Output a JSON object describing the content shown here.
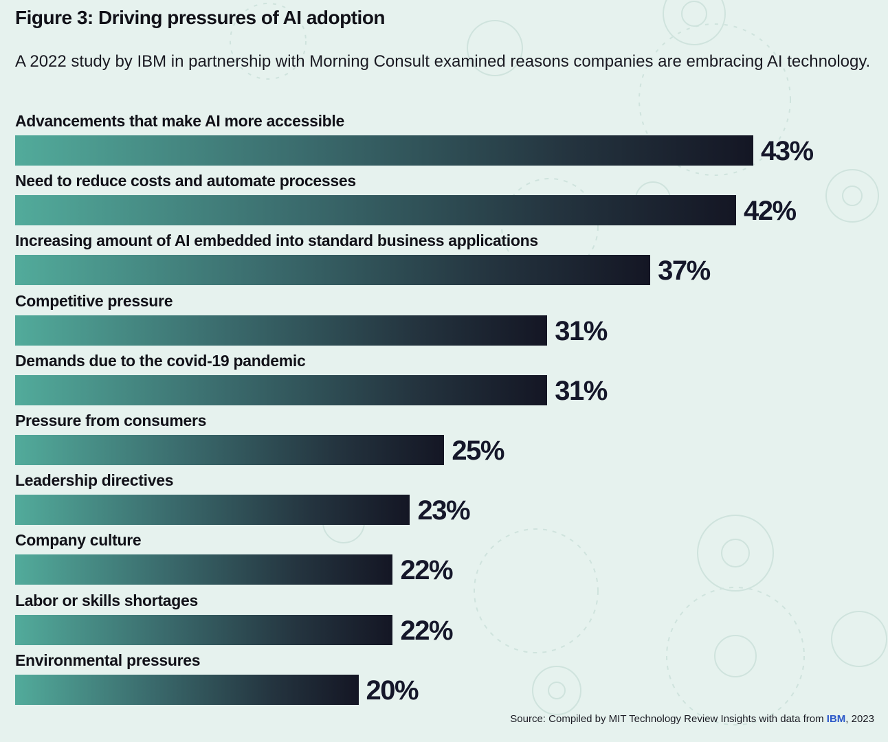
{
  "title": "Figure 3: Driving pressures of AI adoption",
  "subtitle": "A 2022 study by IBM  in partnership with Morning Consult examined reasons companies are embracing AI technology.",
  "source": {
    "prefix": "Source: Compiled by MIT Technology Review Insights with data from ",
    "highlight": "IBM",
    "suffix": ", 2023"
  },
  "colors": {
    "background": "#e6f2ee",
    "bar_start": "#52ab9b",
    "bar_end": "#141624",
    "text": "#111118",
    "ibm_blue": "#2b58c8"
  },
  "chart_data": {
    "type": "bar",
    "orientation": "horizontal",
    "categories": [
      "Advancements that make AI more accessible",
      "Need to reduce costs and automate processes",
      " Increasing amount of AI embedded into standard business applications",
      "Competitive pressure",
      "Demands due to the covid-19 pandemic",
      "Pressure from consumers",
      "Leadership directives",
      "Company culture",
      " Labor or skills shortages",
      "Environmental pressures"
    ],
    "values": [
      43,
      42,
      37,
      31,
      31,
      25,
      23,
      22,
      22,
      20
    ],
    "value_labels": [
      "43%",
      "42%",
      "37%",
      "31%",
      "31%",
      "25%",
      "23%",
      "22%",
      "22%",
      "20%"
    ],
    "unit": "%",
    "xlim": [
      0,
      43
    ],
    "grid": false,
    "legend": "none"
  }
}
